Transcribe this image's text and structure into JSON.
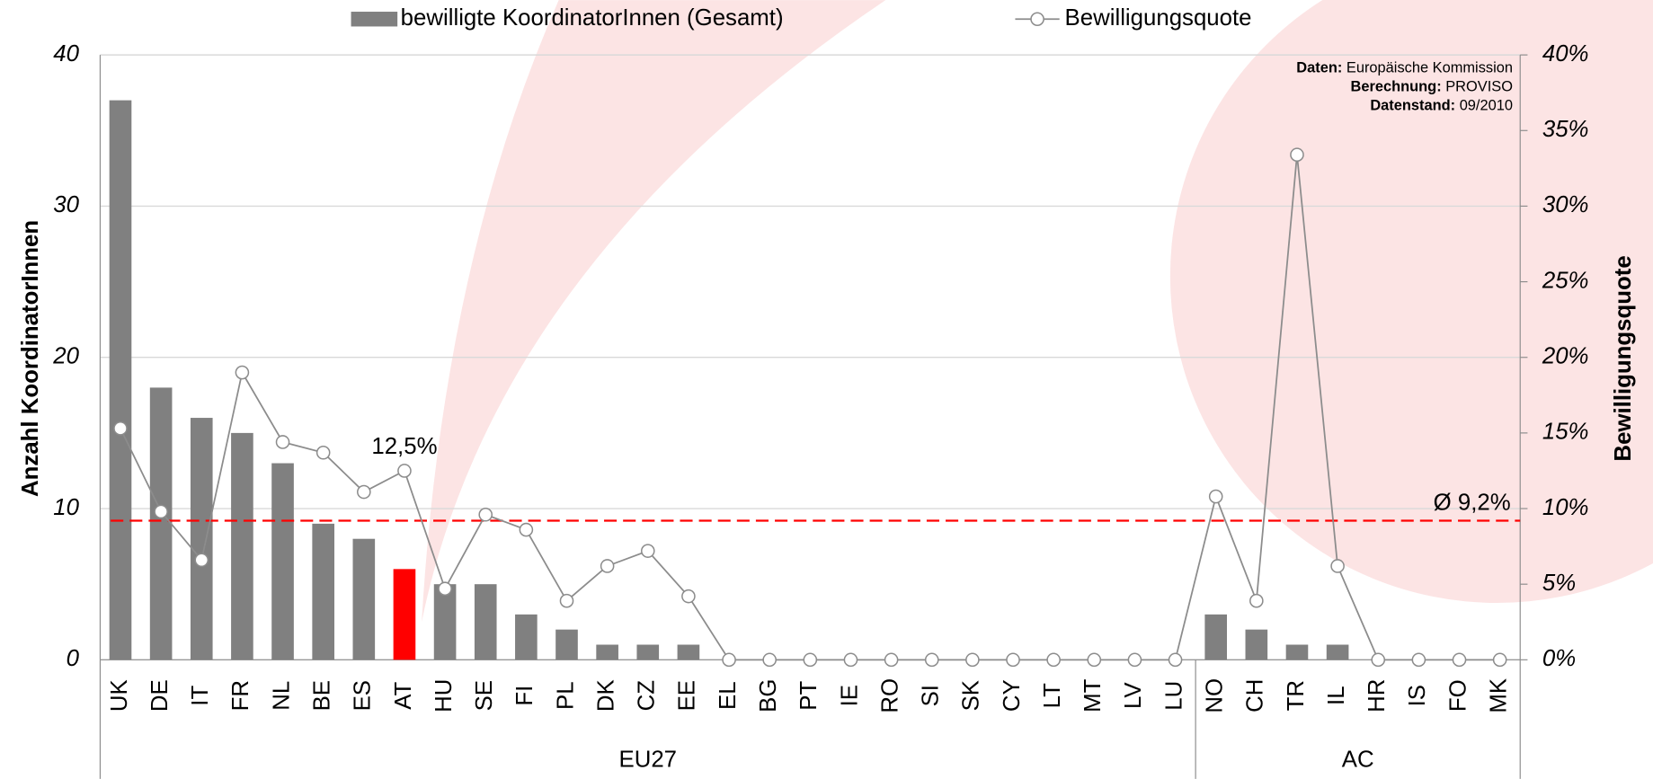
{
  "chart_data": {
    "type": "bar",
    "legend": "top",
    "grid": true,
    "categories": [
      "UK",
      "DE",
      "IT",
      "FR",
      "NL",
      "BE",
      "ES",
      "AT",
      "HU",
      "SE",
      "FI",
      "PL",
      "DK",
      "CZ",
      "EE",
      "EL",
      "BG",
      "PT",
      "IE",
      "RO",
      "SI",
      "SK",
      "CY",
      "LT",
      "MT",
      "LV",
      "LU",
      "NO",
      "CH",
      "TR",
      "IL",
      "HR",
      "IS",
      "FO",
      "MK"
    ],
    "groups": [
      {
        "label": "EU27",
        "size": 27
      },
      {
        "label": "AC",
        "size": 8
      }
    ],
    "series": [
      {
        "name": "bewilligte KoordinatorInnen (Gesamt)",
        "type": "bar",
        "color": "#808080",
        "colors": [
          "#808080",
          "#808080",
          "#808080",
          "#808080",
          "#808080",
          "#808080",
          "#808080",
          "#ff0000",
          "#808080",
          "#808080",
          "#808080",
          "#808080",
          "#808080",
          "#808080",
          "#808080",
          "#808080",
          "#808080",
          "#808080",
          "#808080",
          "#808080",
          "#808080",
          "#808080",
          "#808080",
          "#808080",
          "#808080",
          "#808080",
          "#808080",
          "#808080",
          "#808080",
          "#808080",
          "#808080",
          "#808080",
          "#808080",
          "#808080",
          "#808080"
        ],
        "values": [
          37,
          18,
          16,
          15,
          13,
          9,
          8,
          6,
          5,
          5,
          3,
          2,
          1,
          1,
          1,
          0,
          0,
          0,
          0,
          0,
          0,
          0,
          0,
          0,
          0,
          0,
          0,
          3,
          2,
          1,
          1,
          0,
          0,
          0,
          0
        ]
      },
      {
        "name": "Bewilligungsquote",
        "type": "line",
        "axis": "y2",
        "color": "#8c8c8c",
        "values": [
          15.3,
          9.8,
          6.6,
          19.0,
          14.4,
          13.7,
          11.1,
          12.5,
          4.7,
          9.6,
          8.6,
          3.9,
          6.2,
          7.2,
          4.2,
          0,
          0,
          0,
          0,
          0,
          0,
          0,
          0,
          0,
          0,
          0,
          0,
          10.8,
          3.9,
          33.4,
          6.2,
          0,
          0,
          0,
          0
        ],
        "value_labels": [
          null,
          null,
          null,
          null,
          null,
          null,
          null,
          "12,5%",
          null,
          null,
          null,
          null,
          null,
          null,
          null,
          null,
          null,
          null,
          null,
          null,
          null,
          null,
          null,
          null,
          null,
          null,
          null,
          null,
          null,
          null,
          null,
          null,
          null,
          null,
          null
        ]
      }
    ],
    "average": {
      "value": 9.2,
      "label": "Ø 9,2%",
      "color": "#ff0000"
    },
    "ylabel": "Anzahl KoordinatorInnen",
    "y2label": "Bewilligungsquote",
    "ylim": [
      0,
      40
    ],
    "yticks": [
      0,
      10,
      20,
      30,
      40
    ],
    "y2lim": [
      0,
      40
    ],
    "y2ticks": [
      {
        "value": 0,
        "label": "0%"
      },
      {
        "value": 5,
        "label": "5%"
      },
      {
        "value": 10,
        "label": "10%"
      },
      {
        "value": 15,
        "label": "15%"
      },
      {
        "value": 20,
        "label": "20%"
      },
      {
        "value": 25,
        "label": "25%"
      },
      {
        "value": 30,
        "label": "30%"
      },
      {
        "value": 35,
        "label": "35%"
      },
      {
        "value": 40,
        "label": "40%"
      }
    ],
    "source": [
      {
        "key": "Daten:",
        "text": "Europäische Kommission"
      },
      {
        "key": "Berechnung:",
        "text": "PROVISO"
      },
      {
        "key": "Datenstand:",
        "text": "09/2010"
      }
    ]
  }
}
